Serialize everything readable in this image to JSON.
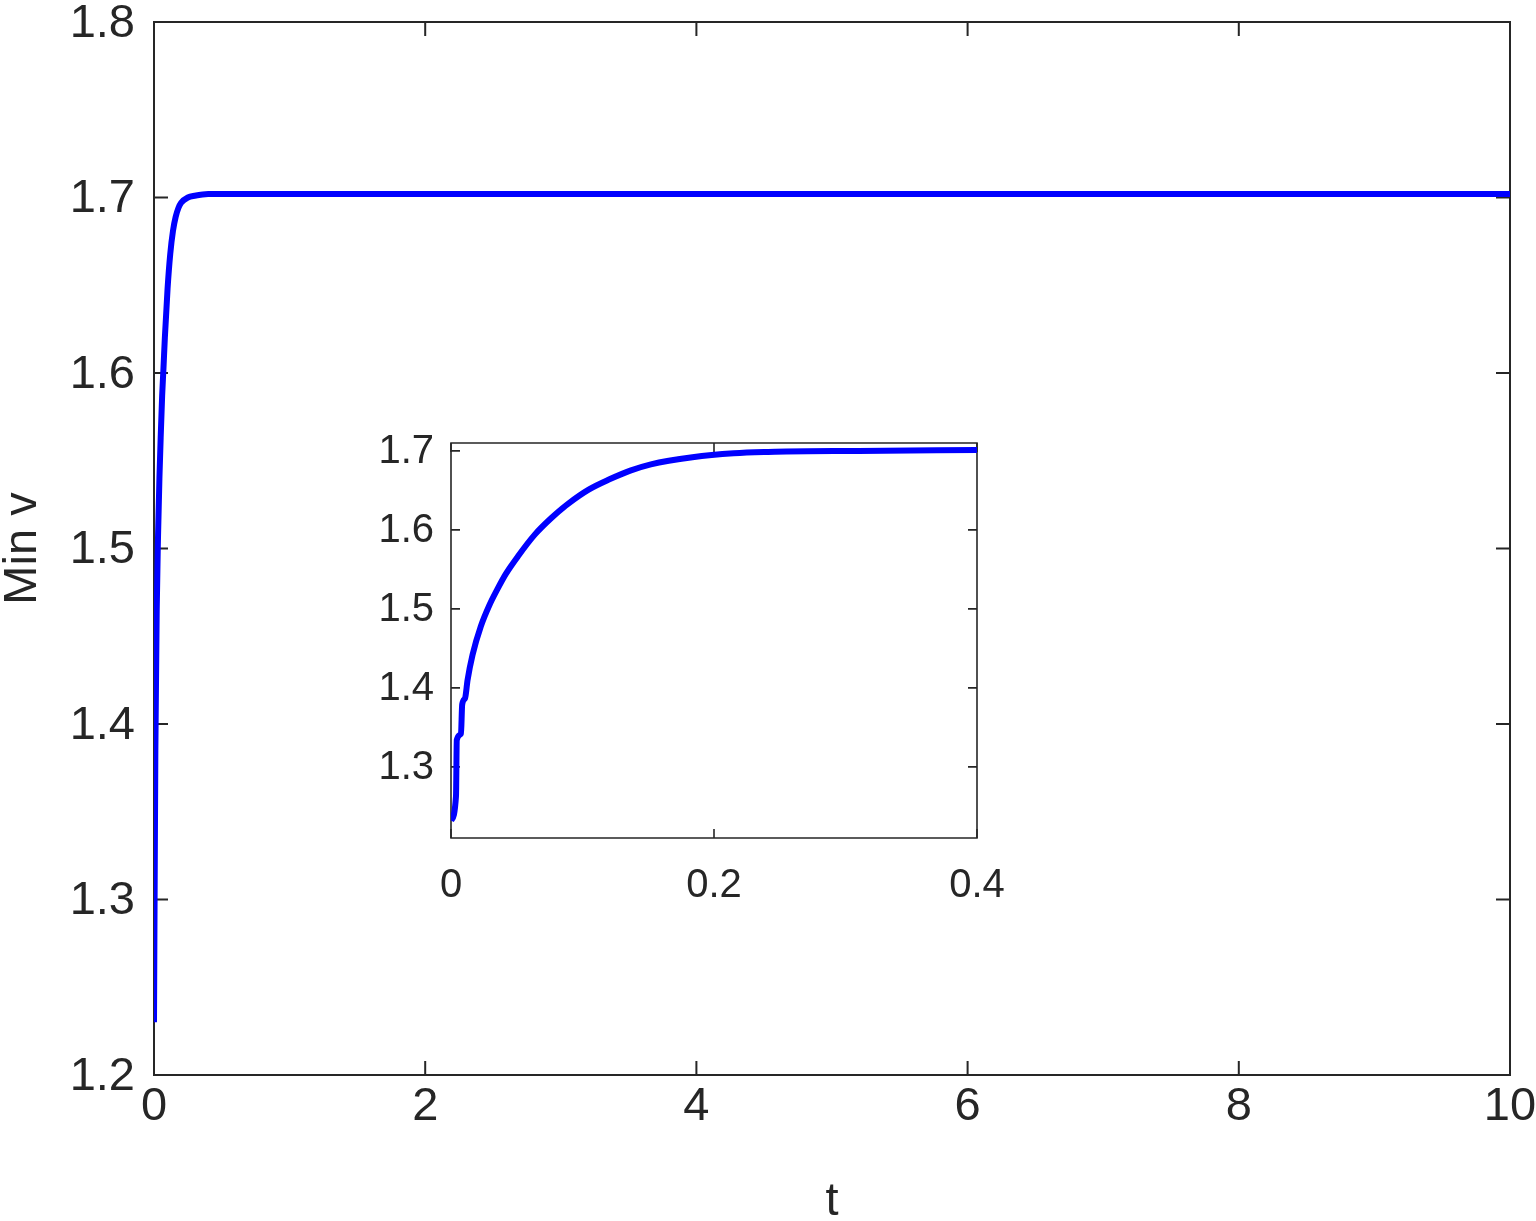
{
  "chart_data": [
    {
      "type": "line",
      "xlabel": "t",
      "ylabel": "Min v",
      "x": [
        0,
        0.01,
        0.02,
        0.03,
        0.04,
        0.05,
        0.06,
        0.07,
        0.08,
        0.1,
        0.12,
        0.14,
        0.16,
        0.18,
        0.2,
        0.25,
        0.3,
        0.4,
        1,
        10
      ],
      "series": [
        {
          "color": "#0000ff",
          "values": [
            1.23,
            1.385,
            1.465,
            1.508,
            1.54,
            1.565,
            1.587,
            1.603,
            1.62,
            1.648,
            1.668,
            1.681,
            1.689,
            1.694,
            1.697,
            1.7,
            1.701,
            1.702,
            1.702,
            1.702
          ]
        }
      ],
      "xlim": [
        0,
        10
      ],
      "ylim": [
        1.2,
        1.8
      ],
      "xticks": [
        0,
        2,
        4,
        6,
        8,
        10
      ],
      "yticks": [
        1.2,
        1.3,
        1.4,
        1.5,
        1.6,
        1.7,
        1.8
      ]
    },
    {
      "type": "line",
      "x": [
        0,
        0.0038,
        0.0044,
        0.0076,
        0.0085,
        0.0107,
        0.0126,
        0.0164,
        0.0227,
        0.029,
        0.0353,
        0.0416,
        0.0511,
        0.0637,
        0.0763,
        0.089,
        0.1047,
        0.1205,
        0.1363,
        0.152,
        0.1836,
        0.215,
        0.2467,
        0.31,
        0.4
      ],
      "series": [
        {
          "color": "#0000ff",
          "values": [
            1.232,
            1.263,
            1.334,
            1.342,
            1.379,
            1.387,
            1.41,
            1.442,
            1.478,
            1.504,
            1.525,
            1.544,
            1.567,
            1.594,
            1.615,
            1.633,
            1.651,
            1.664,
            1.675,
            1.683,
            1.692,
            1.697,
            1.699,
            1.7,
            1.701
          ]
        }
      ],
      "xlim": [
        0,
        0.4
      ],
      "ylim": [
        1.21,
        1.71
      ],
      "xticks": [
        0,
        0.2,
        0.4
      ],
      "yticks": [
        1.3,
        1.4,
        1.5,
        1.6,
        1.7
      ]
    }
  ]
}
